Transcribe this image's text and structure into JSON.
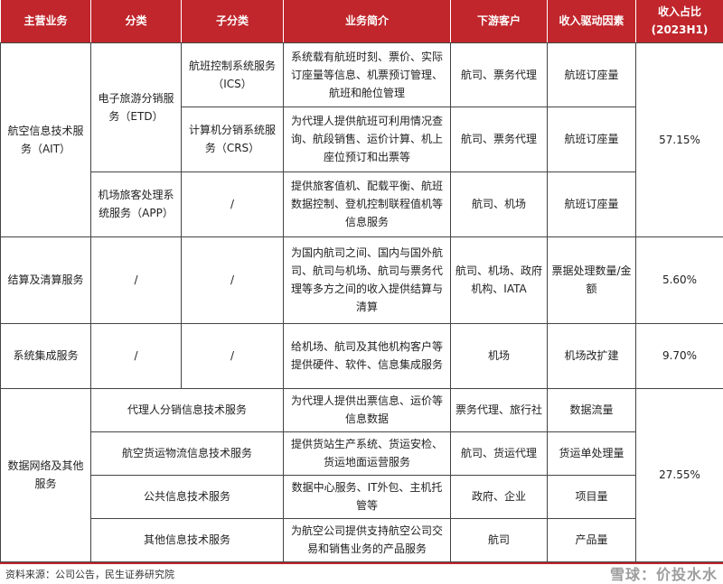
{
  "header": [
    "主营业务",
    "分类",
    "子分类",
    "业务简介",
    "下游客户",
    "收入驱动因素",
    "收入占比",
    "(2023H1)"
  ],
  "rows": {
    "ait": {
      "main": "航空信息技术服务（AIT）",
      "share": "57.15%",
      "etd": "电子旅游分销服务（ETD）",
      "ics": {
        "sub": "航班控制系统服务（ICS）",
        "desc": "系统载有航班时刻、票价、实际订座量等信息、机票预订管理、航班和舱位管理",
        "cust": "航司、票务代理",
        "driver": "航班订座量"
      },
      "crs": {
        "sub": "计算机分销系统服务（CRS）",
        "desc": "为代理人提供航班可利用情况查询、航段销售、运价计算、机上座位预订和出票等",
        "cust": "航司、票务代理",
        "driver": "航班订座量"
      },
      "app": {
        "cat": "机场旅客处理系统服务（APP）",
        "sub": "/",
        "desc": "提供旅客值机、配载平衡、航班数据控制、登机控制联程值机等信息服务",
        "cust": "航司、机场",
        "driver": "航班订座量"
      }
    },
    "settle": {
      "main": "结算及清算服务",
      "cat": "/",
      "sub": "/",
      "desc": "为国内航司之间、国内与国外航司、航司与机场、航司与票务代理等多方之间的收入提供结算与清算",
      "cust": "航司、机场、政府机构、IATA",
      "driver": "票据处理数量/金额",
      "share": "5.60%"
    },
    "sys": {
      "main": "系统集成服务",
      "cat": "/",
      "sub": "/",
      "desc": "给机场、航司及其他机构客户等提供硬件、软件、信息集成服务",
      "cust": "机场",
      "driver": "机场改扩建",
      "share": "9.70%"
    },
    "data": {
      "main": "数据网络及其他服务",
      "share": "27.55%",
      "items": [
        {
          "cat": "代理人分销信息技术服务",
          "desc": "为代理人提供出票信息、运价等信息数据",
          "cust": "票务代理、旅行社",
          "driver": "数据流量"
        },
        {
          "cat": "航空货运物流信息技术服务",
          "desc": "提供货站生产系统、货运安检、货运地面运营服务",
          "cust": "航司、货运代理",
          "driver": "货运单处理量"
        },
        {
          "cat": "公共信息技术服务",
          "desc": "数据中心服务、IT外包、主机托管等",
          "cust": "政府、企业",
          "driver": "项目量"
        },
        {
          "cat": "其他信息技术服务",
          "desc": "为航空公司提供支持航空公司交易和销售业务的产品服务",
          "cust": "航司",
          "driver": "产品量"
        }
      ]
    }
  },
  "source": "资料来源：公司公告，民生证券研究院",
  "watermark": "雪球：价投水水",
  "colors": {
    "header": "#c0262c"
  }
}
